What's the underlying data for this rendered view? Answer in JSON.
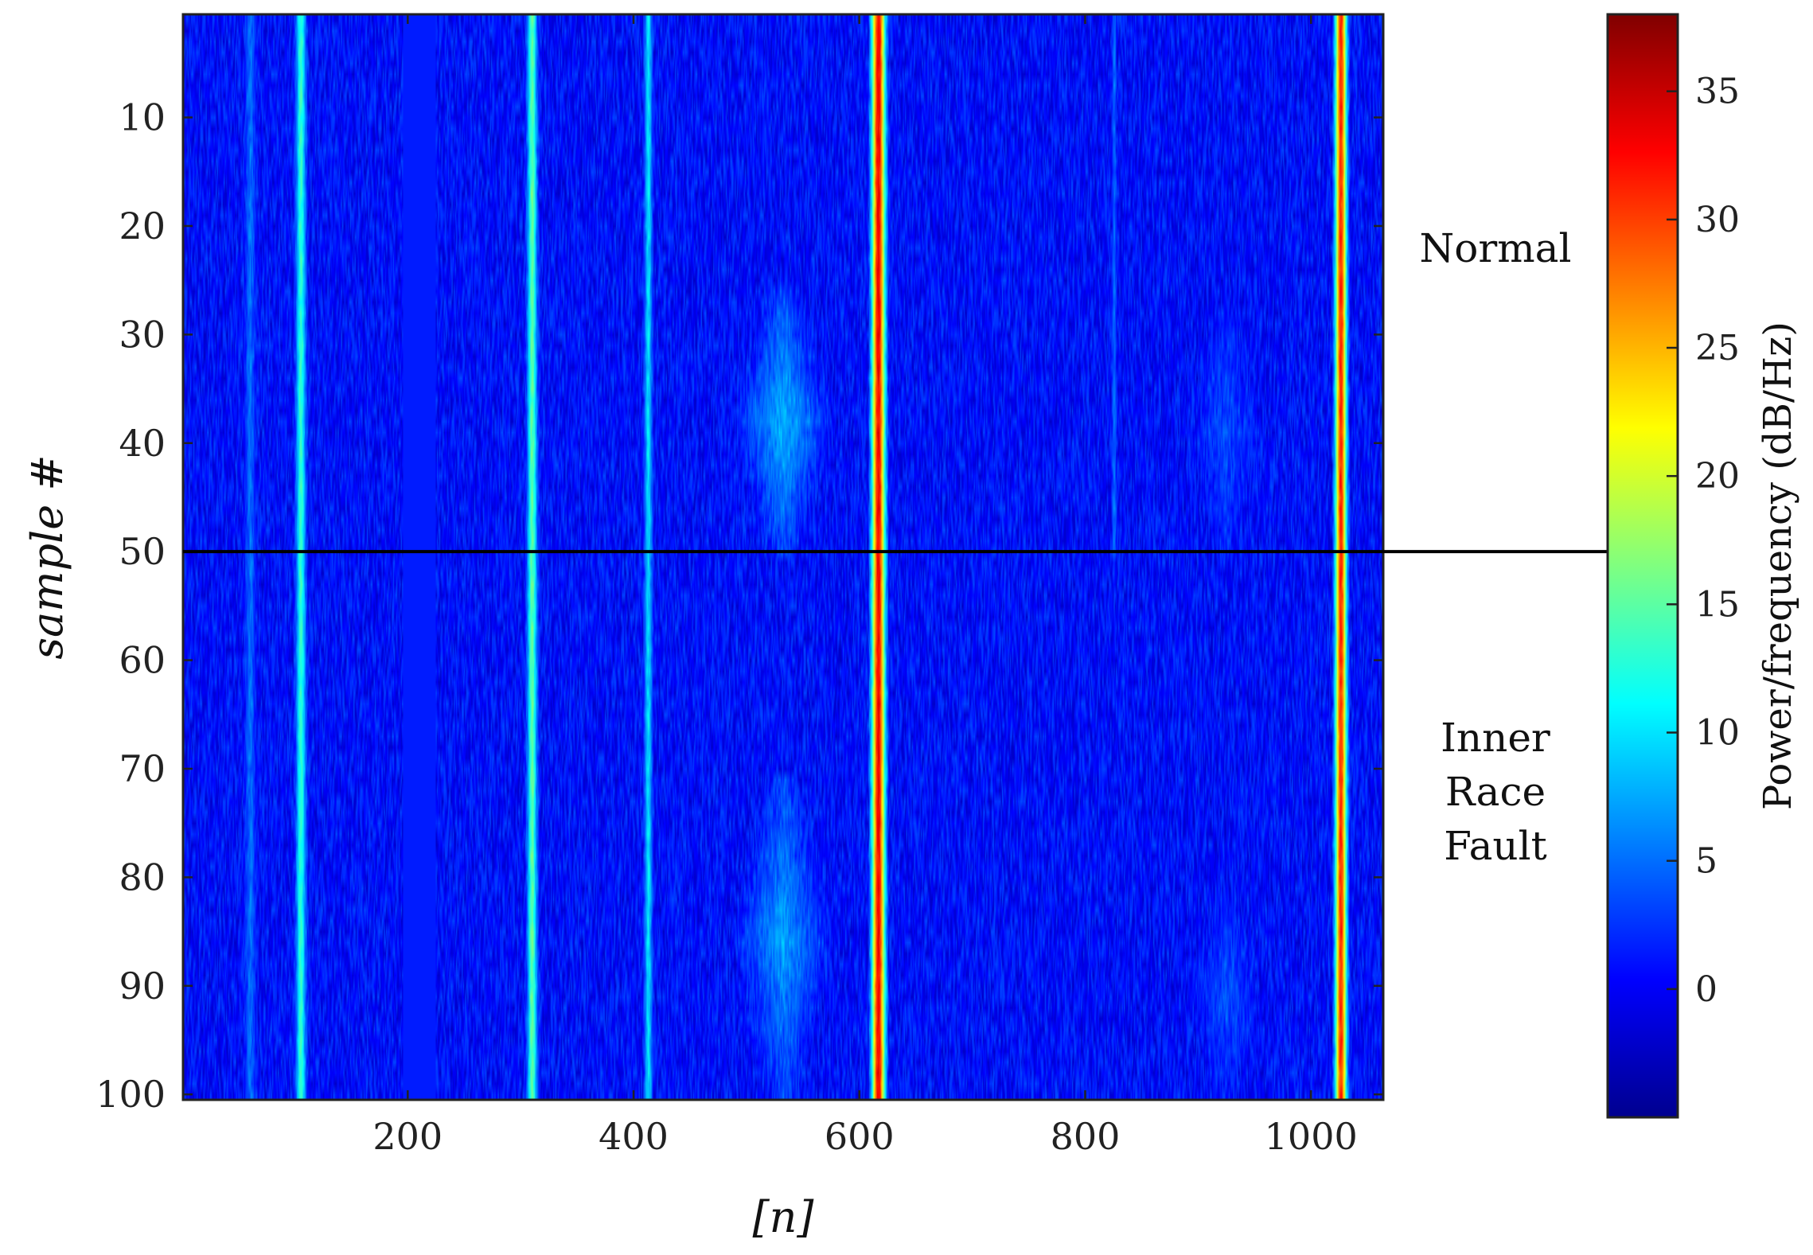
{
  "chart_data": {
    "type": "heatmap",
    "xlabel": "[n]",
    "ylabel": "sample #",
    "xlim": [
      1,
      1064
    ],
    "ylim": [
      1,
      100
    ],
    "y_reversed": true,
    "xticks": [
      200,
      400,
      600,
      800,
      1000
    ],
    "yticks": [
      10,
      20,
      30,
      40,
      50,
      60,
      70,
      80,
      90,
      100
    ],
    "colormap": "jet",
    "colorbar": {
      "label": "Power/frequency (dB/Hz)",
      "range": [
        -5,
        38
      ],
      "ticks": [
        0,
        5,
        10,
        15,
        20,
        25,
        30,
        35
      ]
    },
    "divider": {
      "sample": 50,
      "color": "#000000"
    },
    "class_labels": [
      {
        "text": "Normal",
        "samples": [
          1,
          50
        ]
      },
      {
        "text": "Inner Race Fault",
        "lines": [
          "Inner",
          "Race",
          "Fault"
        ],
        "samples": [
          51,
          100
        ]
      }
    ],
    "background_level_db": 1,
    "bands": [
      {
        "n": 105,
        "width": 10,
        "level_db": 13,
        "samples": [
          1,
          100
        ],
        "desc": "yellow-green streak"
      },
      {
        "n": 310,
        "width": 10,
        "level_db": 15,
        "samples": [
          1,
          100
        ],
        "desc": "yellow streak"
      },
      {
        "n": 413,
        "width": 8,
        "level_db": 10,
        "samples": [
          1,
          100
        ],
        "desc": "green streak"
      },
      {
        "n": 617,
        "width": 14,
        "level_db": 33,
        "samples": [
          1,
          100
        ],
        "desc": "dark red line"
      },
      {
        "n": 1027,
        "width": 12,
        "level_db": 31,
        "samples": [
          1,
          100
        ],
        "desc": "red line"
      },
      {
        "n": 826,
        "width": 4,
        "level_db": 5,
        "samples": [
          1,
          50
        ],
        "desc": "faint cyan line"
      },
      {
        "n": 60,
        "width": 10,
        "level_db": 5,
        "samples": [
          1,
          100
        ],
        "desc": "faint cyan texture"
      }
    ],
    "flat_bands": [
      {
        "n_range": [
          196,
          224
        ],
        "level_db": 1.5,
        "desc": "uniform blue column"
      }
    ],
    "blobs": [
      {
        "n_range": [
          485,
          580
        ],
        "samples": [
          26,
          50
        ],
        "level_db": 9,
        "desc": "green diamond-shaped region (normal)"
      },
      {
        "n_range": [
          485,
          580
        ],
        "samples": [
          71,
          100
        ],
        "level_db": 8,
        "desc": "green diamond-shaped region (fault)"
      },
      {
        "n_range": [
          890,
          960
        ],
        "samples": [
          28,
          50
        ],
        "level_db": 4,
        "desc": "faint cyan patch"
      },
      {
        "n_range": [
          890,
          960
        ],
        "samples": [
          82,
          100
        ],
        "level_db": 4,
        "desc": "faint cyan patch"
      }
    ]
  }
}
